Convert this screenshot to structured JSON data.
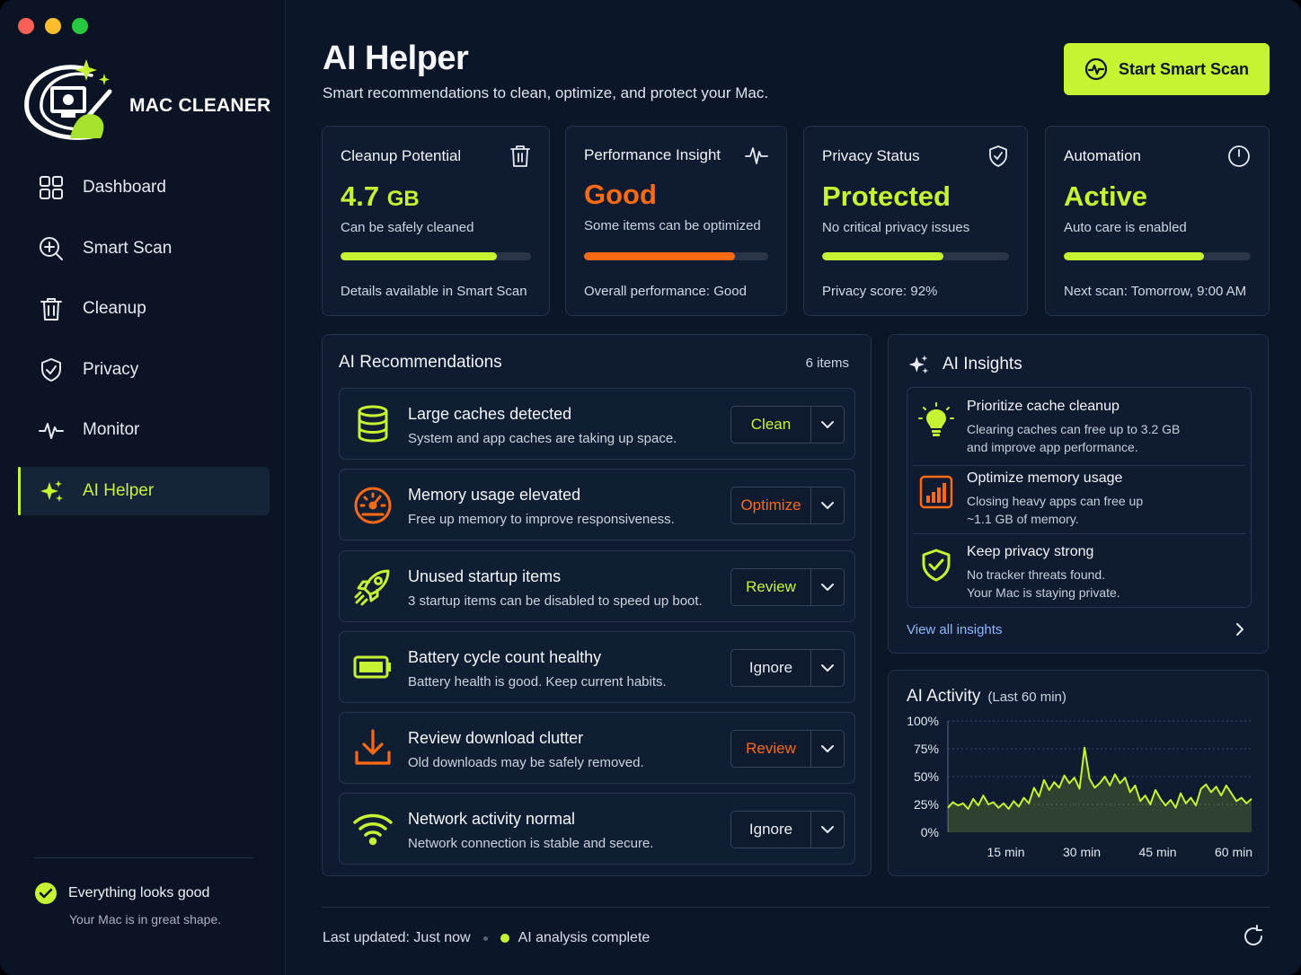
{
  "app": {
    "name": "MAC CLEANER"
  },
  "colors": {
    "accent": "#c6f432",
    "orange": "#ff6a13",
    "bg": "#0b1628"
  },
  "sidebar": {
    "items": [
      {
        "label": "Dashboard",
        "icon": "grid-icon"
      },
      {
        "label": "Smart Scan",
        "icon": "search-plus-icon"
      },
      {
        "label": "Cleanup",
        "icon": "trash-icon"
      },
      {
        "label": "Privacy",
        "icon": "shield-icon"
      },
      {
        "label": "Monitor",
        "icon": "pulse-icon"
      },
      {
        "label": "AI Helper",
        "icon": "sparkle-icon",
        "active": true
      }
    ],
    "status": {
      "title": "Everything looks good",
      "subtitle": "Your Mac is in great shape."
    }
  },
  "header": {
    "title": "AI Helper",
    "subtitle": "Smart recommendations to clean, optimize, and protect your Mac.",
    "scan_button": "Start Smart Scan"
  },
  "cards": [
    {
      "title": "Cleanup Potential",
      "value": "4.7",
      "unit": "GB",
      "desc": "Can be safely cleaned",
      "progress": 0.82,
      "color": "#c6f432",
      "foot": "Details available in Smart Scan",
      "icon": "trash-icon"
    },
    {
      "title": "Performance Insight",
      "value": "Good",
      "unit": "",
      "desc": "Some items can be optimized",
      "progress": 0.82,
      "color": "#ff6a13",
      "foot": "Overall performance: Good",
      "icon": "pulse-icon"
    },
    {
      "title": "Privacy Status",
      "value": "Protected",
      "unit": "",
      "desc": "No critical privacy issues",
      "progress": 0.65,
      "color": "#c6f432",
      "foot": "Privacy score: 92%",
      "icon": "shield-check-icon"
    },
    {
      "title": "Automation",
      "value": "Active",
      "unit": "",
      "desc": "Auto care is enabled",
      "progress": 0.75,
      "color": "#c6f432",
      "foot": "Next scan: Tomorrow, 9:00 AM",
      "icon": "clock-icon"
    }
  ],
  "recommendations": {
    "title": "AI Recommendations",
    "count": "6 items",
    "items": [
      {
        "title": "Large caches detected",
        "desc": "System and app caches are taking up space.",
        "action": "Clean",
        "action_color": "#c6f432",
        "icon": "database-icon"
      },
      {
        "title": "Memory usage elevated",
        "desc": "Free up memory to improve responsiveness.",
        "action": "Optimize",
        "action_color": "#ff6a13",
        "icon": "gauge-icon"
      },
      {
        "title": "Unused startup items",
        "desc": "3 startup items can be disabled to speed up boot.",
        "action": "Review",
        "action_color": "#c6f432",
        "icon": "rocket-icon"
      },
      {
        "title": "Battery cycle count healthy",
        "desc": "Battery health is good. Keep current habits.",
        "action": "Ignore",
        "action_color": "#e8edf5",
        "icon": "battery-icon"
      },
      {
        "title": "Review download clutter",
        "desc": "Old downloads may be safely removed.",
        "action": "Review",
        "action_color": "#ff6a13",
        "icon": "download-icon"
      },
      {
        "title": "Network activity normal",
        "desc": "Network connection is stable and secure.",
        "action": "Ignore",
        "action_color": "#e8edf5",
        "icon": "wifi-icon"
      }
    ]
  },
  "insights": {
    "title": "AI Insights",
    "items": [
      {
        "title": "Prioritize cache cleanup",
        "line1": "Clearing caches can free up to 3.2 GB",
        "line2": "and improve app performance.",
        "icon": "lightbulb-icon"
      },
      {
        "title": "Optimize memory usage",
        "line1": "Closing heavy apps can free up",
        "line2": "~1.1 GB of memory.",
        "icon": "bar-chart-icon"
      },
      {
        "title": "Keep privacy strong",
        "line1": "No tracker threats found.",
        "line2": "Your Mac is staying private.",
        "icon": "shield-check-icon"
      }
    ],
    "link": "View all insights"
  },
  "chart_data": {
    "type": "area",
    "title": "AI Activity",
    "subtitle": "(Last 60 min)",
    "ylim": [
      0,
      100
    ],
    "y_ticks": [
      "0%",
      "25%",
      "50%",
      "75%",
      "100%"
    ],
    "x_ticks": [
      "15 min",
      "30 min",
      "45 min",
      "60 min"
    ],
    "grid": true,
    "series": [
      {
        "values": [
          22,
          27,
          24,
          26,
          21,
          30,
          24,
          33,
          25,
          27,
          22,
          26,
          21,
          28,
          23,
          31,
          26,
          40,
          32,
          47,
          38,
          45,
          40,
          51,
          44,
          49,
          39,
          76,
          48,
          40,
          44,
          50,
          42,
          52,
          44,
          49,
          36,
          42,
          28,
          33,
          25,
          38,
          30,
          24,
          29,
          22,
          35,
          26,
          31,
          24,
          39,
          43,
          36,
          41,
          33,
          42,
          35,
          28,
          31,
          26,
          30
        ]
      }
    ]
  },
  "footer": {
    "updated": "Last updated: Just now",
    "status": "AI analysis complete"
  }
}
